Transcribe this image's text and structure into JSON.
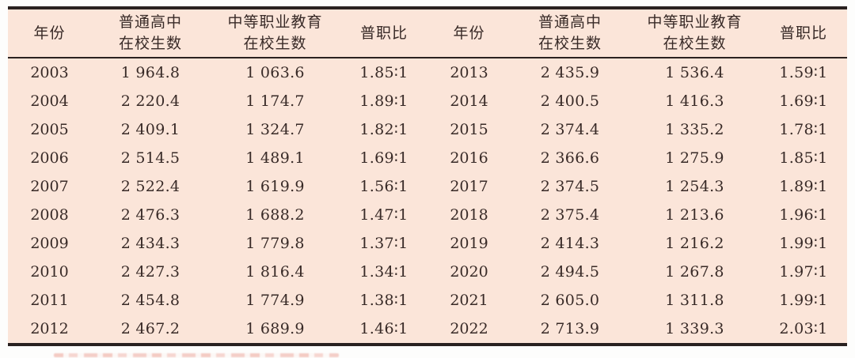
{
  "table": {
    "header": {
      "year": "年份",
      "regular_line1": "普通高中",
      "regular_line2": "在校生数",
      "vocational_line1": "中等职业教育",
      "vocational_line2": "在校生数",
      "ratio": "普职比"
    },
    "rows_left": [
      {
        "year": "2003",
        "regular": "1 964.8",
        "vocational": "1 063.6",
        "ratio": "1.85∶1"
      },
      {
        "year": "2004",
        "regular": "2 220.4",
        "vocational": "1 174.7",
        "ratio": "1.89∶1"
      },
      {
        "year": "2005",
        "regular": "2 409.1",
        "vocational": "1 324.7",
        "ratio": "1.82∶1"
      },
      {
        "year": "2006",
        "regular": "2 514.5",
        "vocational": "1 489.1",
        "ratio": "1.69∶1"
      },
      {
        "year": "2007",
        "regular": "2 522.4",
        "vocational": "1 619.9",
        "ratio": "1.56∶1"
      },
      {
        "year": "2008",
        "regular": "2 476.3",
        "vocational": "1 688.2",
        "ratio": "1.47∶1"
      },
      {
        "year": "2009",
        "regular": "2 434.3",
        "vocational": "1 779.8",
        "ratio": "1.37∶1"
      },
      {
        "year": "2010",
        "regular": "2 427.3",
        "vocational": "1 816.4",
        "ratio": "1.34∶1"
      },
      {
        "year": "2011",
        "regular": "2 454.8",
        "vocational": "1 774.9",
        "ratio": "1.38∶1"
      },
      {
        "year": "2012",
        "regular": "2 467.2",
        "vocational": "1 689.9",
        "ratio": "1.46∶1"
      }
    ],
    "rows_right": [
      {
        "year": "2013",
        "regular": "2 435.9",
        "vocational": "1 536.4",
        "ratio": "1.59∶1"
      },
      {
        "year": "2014",
        "regular": "2 400.5",
        "vocational": "1 416.3",
        "ratio": "1.69∶1"
      },
      {
        "year": "2015",
        "regular": "2 374.4",
        "vocational": "1 335.2",
        "ratio": "1.78∶1"
      },
      {
        "year": "2016",
        "regular": "2 366.6",
        "vocational": "1 275.9",
        "ratio": "1.85∶1"
      },
      {
        "year": "2017",
        "regular": "2 374.5",
        "vocational": "1 254.3",
        "ratio": "1.89∶1"
      },
      {
        "year": "2018",
        "regular": "2 375.4",
        "vocational": "1 213.6",
        "ratio": "1.96∶1"
      },
      {
        "year": "2019",
        "regular": "2 414.3",
        "vocational": "1 216.2",
        "ratio": "1.99∶1"
      },
      {
        "year": "2020",
        "regular": "2 494.5",
        "vocational": "1 267.8",
        "ratio": "1.97∶1"
      },
      {
        "year": "2021",
        "regular": "2 605.0",
        "vocational": "1 311.8",
        "ratio": "1.99∶1"
      },
      {
        "year": "2022",
        "regular": "2 713.9",
        "vocational": "1 339.3",
        "ratio": "2.03∶1"
      }
    ],
    "colors": {
      "table_background": "#fbe5d9",
      "border": "#292120",
      "text": "#382a27",
      "cutoff_caption_red": "#e2705e"
    }
  }
}
